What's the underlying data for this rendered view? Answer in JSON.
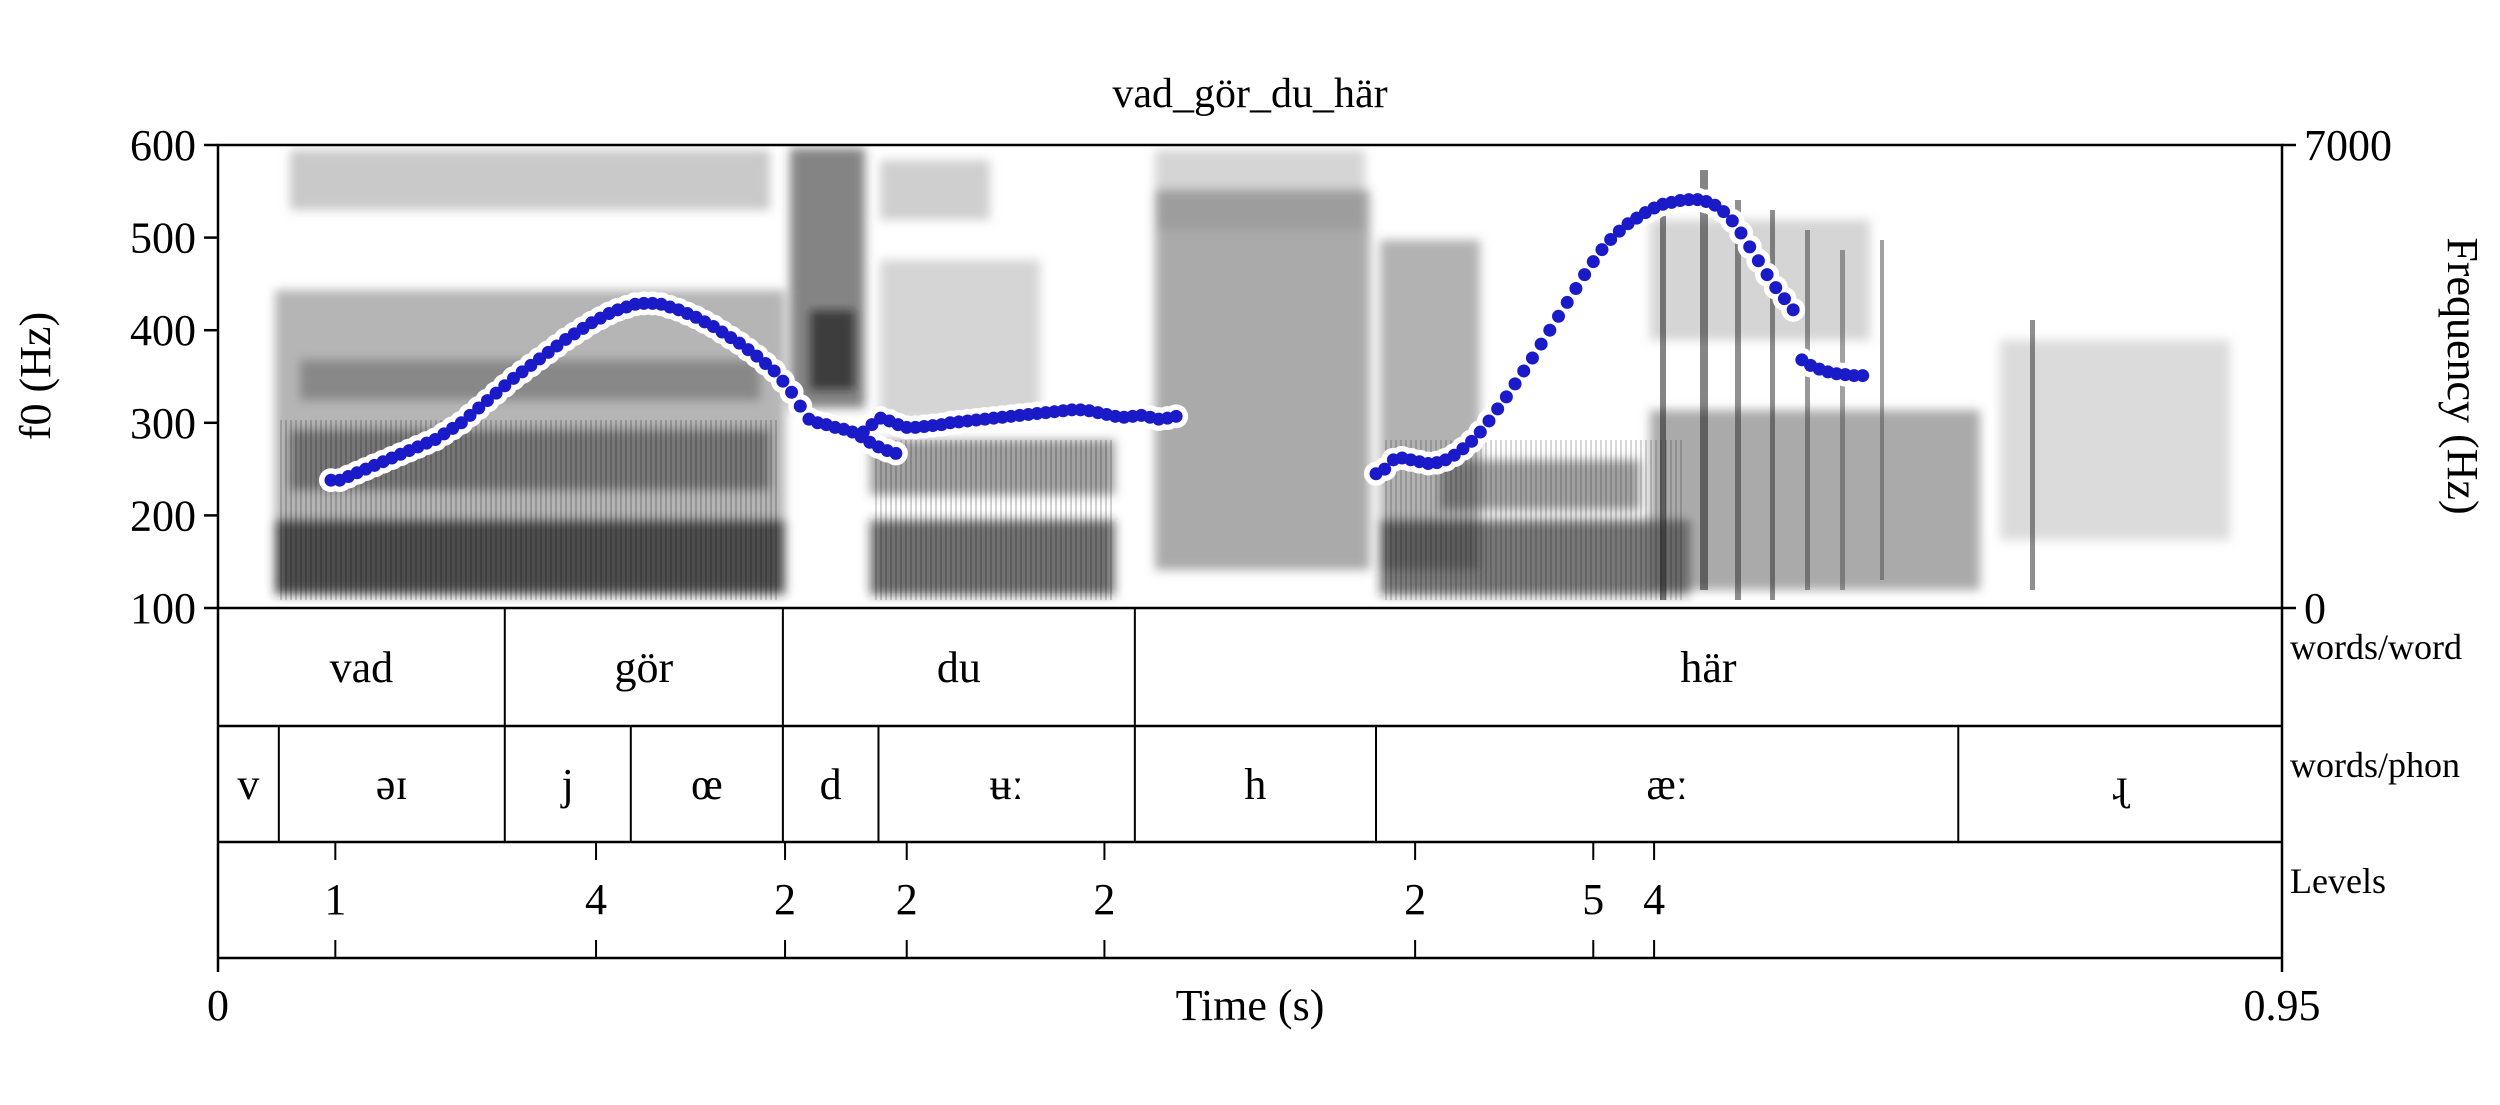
{
  "chart_data": {
    "type": "scatter",
    "title": "vad_gör_du_här",
    "xlabel": "Time (s)",
    "ylabel": "f0 (Hz)",
    "y2label": "Frequency (Hz)",
    "xlim": [
      0,
      0.95
    ],
    "ylim": [
      100,
      600
    ],
    "y2lim": [
      0,
      7000
    ],
    "x_ticks": [
      "0",
      "0.95"
    ],
    "y_ticks": [
      "100",
      "200",
      "300",
      "400",
      "500",
      "600"
    ],
    "y2_ticks": [
      "0",
      "7000"
    ],
    "colors": {
      "pitch": "#1a1ac8",
      "halo": "#ffffff",
      "axes": "#000000"
    },
    "pitch_segments": [
      [
        [
          0.052,
          238
        ],
        [
          0.056,
          238
        ],
        [
          0.06,
          242
        ],
        [
          0.064,
          246
        ],
        [
          0.068,
          250
        ],
        [
          0.072,
          254
        ],
        [
          0.076,
          258
        ],
        [
          0.08,
          262
        ],
        [
          0.084,
          266
        ],
        [
          0.088,
          270
        ],
        [
          0.092,
          274
        ],
        [
          0.096,
          278
        ],
        [
          0.1,
          282
        ],
        [
          0.104,
          288
        ],
        [
          0.108,
          294
        ],
        [
          0.112,
          300
        ],
        [
          0.116,
          308
        ],
        [
          0.12,
          316
        ],
        [
          0.124,
          324
        ],
        [
          0.128,
          332
        ],
        [
          0.132,
          340
        ],
        [
          0.136,
          348
        ],
        [
          0.14,
          355
        ],
        [
          0.144,
          362
        ],
        [
          0.148,
          369
        ],
        [
          0.152,
          376
        ],
        [
          0.156,
          383
        ],
        [
          0.16,
          390
        ],
        [
          0.164,
          396
        ],
        [
          0.168,
          402
        ],
        [
          0.172,
          408
        ],
        [
          0.176,
          413
        ],
        [
          0.18,
          418
        ],
        [
          0.184,
          422
        ],
        [
          0.188,
          425
        ],
        [
          0.192,
          428
        ],
        [
          0.196,
          429
        ],
        [
          0.2,
          429
        ],
        [
          0.204,
          428
        ],
        [
          0.208,
          425
        ],
        [
          0.212,
          422
        ],
        [
          0.216,
          418
        ],
        [
          0.22,
          414
        ],
        [
          0.224,
          409
        ],
        [
          0.228,
          404
        ],
        [
          0.232,
          398
        ],
        [
          0.236,
          392
        ],
        [
          0.24,
          386
        ],
        [
          0.244,
          379
        ],
        [
          0.248,
          372
        ],
        [
          0.252,
          364
        ],
        [
          0.256,
          356
        ],
        [
          0.26,
          345
        ],
        [
          0.264,
          333
        ],
        [
          0.268,
          318
        ],
        [
          0.272,
          304
        ],
        [
          0.276,
          300
        ],
        [
          0.28,
          298
        ],
        [
          0.284,
          295
        ],
        [
          0.288,
          293
        ],
        [
          0.292,
          290
        ],
        [
          0.296,
          285
        ],
        [
          0.3,
          279
        ],
        [
          0.304,
          274
        ],
        [
          0.308,
          270
        ],
        [
          0.312,
          267
        ]
      ],
      [
        [
          0.297,
          290
        ],
        [
          0.301,
          298
        ],
        [
          0.305,
          305
        ],
        [
          0.309,
          302
        ],
        [
          0.313,
          298
        ],
        [
          0.317,
          295
        ],
        [
          0.321,
          295
        ],
        [
          0.325,
          296
        ],
        [
          0.329,
          297
        ],
        [
          0.333,
          298
        ],
        [
          0.337,
          300
        ],
        [
          0.341,
          301
        ],
        [
          0.345,
          302
        ],
        [
          0.349,
          303
        ],
        [
          0.353,
          304
        ],
        [
          0.357,
          305
        ],
        [
          0.361,
          306
        ],
        [
          0.365,
          307
        ],
        [
          0.369,
          308
        ],
        [
          0.373,
          309
        ],
        [
          0.377,
          310
        ],
        [
          0.381,
          311
        ],
        [
          0.385,
          312
        ],
        [
          0.389,
          313
        ],
        [
          0.393,
          314
        ],
        [
          0.397,
          314
        ],
        [
          0.401,
          313
        ],
        [
          0.405,
          311
        ],
        [
          0.409,
          309
        ],
        [
          0.413,
          307
        ],
        [
          0.417,
          306
        ],
        [
          0.421,
          307
        ],
        [
          0.425,
          308
        ],
        [
          0.429,
          306
        ],
        [
          0.433,
          304
        ],
        [
          0.437,
          305
        ],
        [
          0.441,
          307
        ]
      ],
      [
        [
          0.533,
          245
        ],
        [
          0.537,
          250
        ],
        [
          0.541,
          260
        ],
        [
          0.545,
          262
        ],
        [
          0.549,
          260
        ],
        [
          0.553,
          258
        ],
        [
          0.557,
          256
        ],
        [
          0.561,
          257
        ],
        [
          0.565,
          260
        ],
        [
          0.569,
          265
        ],
        [
          0.573,
          272
        ],
        [
          0.577,
          280
        ],
        [
          0.581,
          290
        ],
        [
          0.585,
          302
        ],
        [
          0.589,
          315
        ],
        [
          0.593,
          328
        ],
        [
          0.597,
          342
        ],
        [
          0.601,
          356
        ],
        [
          0.605,
          370
        ],
        [
          0.609,
          385
        ],
        [
          0.613,
          400
        ],
        [
          0.617,
          415
        ],
        [
          0.621,
          430
        ],
        [
          0.625,
          445
        ],
        [
          0.629,
          460
        ],
        [
          0.633,
          474
        ],
        [
          0.637,
          487
        ],
        [
          0.641,
          498
        ],
        [
          0.645,
          507
        ],
        [
          0.649,
          515
        ],
        [
          0.653,
          521
        ],
        [
          0.657,
          527
        ],
        [
          0.661,
          532
        ],
        [
          0.665,
          536
        ],
        [
          0.669,
          538
        ],
        [
          0.673,
          540
        ],
        [
          0.677,
          541
        ],
        [
          0.681,
          541
        ],
        [
          0.685,
          539
        ],
        [
          0.689,
          535
        ],
        [
          0.693,
          528
        ],
        [
          0.697,
          518
        ],
        [
          0.701,
          505
        ],
        [
          0.705,
          490
        ],
        [
          0.709,
          475
        ],
        [
          0.713,
          460
        ],
        [
          0.717,
          446
        ],
        [
          0.721,
          434
        ],
        [
          0.725,
          422
        ],
        [
          0.729,
          368
        ],
        [
          0.733,
          362
        ],
        [
          0.737,
          358
        ],
        [
          0.741,
          355
        ],
        [
          0.745,
          353
        ],
        [
          0.749,
          352
        ],
        [
          0.753,
          351
        ],
        [
          0.757,
          351
        ]
      ]
    ],
    "tiers": [
      {
        "name": "words/word",
        "intervals": [
          {
            "start": 0,
            "end": 0.132,
            "label": "vad"
          },
          {
            "start": 0.132,
            "end": 0.26,
            "label": "gör"
          },
          {
            "start": 0.26,
            "end": 0.422,
            "label": "du"
          },
          {
            "start": 0.422,
            "end": 0.95,
            "label": "här"
          }
        ]
      },
      {
        "name": "words/phon",
        "intervals": [
          {
            "start": 0,
            "end": 0.028,
            "label": "v"
          },
          {
            "start": 0.028,
            "end": 0.132,
            "label": "əɪ"
          },
          {
            "start": 0.132,
            "end": 0.19,
            "label": "j"
          },
          {
            "start": 0.19,
            "end": 0.26,
            "label": "œ"
          },
          {
            "start": 0.26,
            "end": 0.304,
            "label": "d"
          },
          {
            "start": 0.304,
            "end": 0.422,
            "label": "ʉː"
          },
          {
            "start": 0.422,
            "end": 0.533,
            "label": "h"
          },
          {
            "start": 0.533,
            "end": 0.801,
            "label": "æː"
          },
          {
            "start": 0.801,
            "end": 0.95,
            "label": "ɻ"
          }
        ]
      },
      {
        "name": "Levels",
        "points": [
          {
            "time": 0.054,
            "label": "1"
          },
          {
            "time": 0.174,
            "label": "4"
          },
          {
            "time": 0.261,
            "label": "2"
          },
          {
            "time": 0.317,
            "label": "2"
          },
          {
            "time": 0.408,
            "label": "2"
          },
          {
            "time": 0.551,
            "label": "2"
          },
          {
            "time": 0.633,
            "label": "5"
          },
          {
            "time": 0.661,
            "label": "4"
          }
        ]
      }
    ]
  }
}
